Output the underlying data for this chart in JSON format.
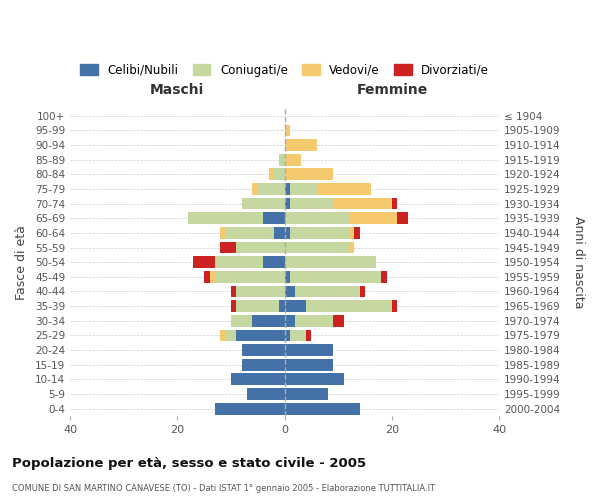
{
  "age_groups": [
    "0-4",
    "5-9",
    "10-14",
    "15-19",
    "20-24",
    "25-29",
    "30-34",
    "35-39",
    "40-44",
    "45-49",
    "50-54",
    "55-59",
    "60-64",
    "65-69",
    "70-74",
    "75-79",
    "80-84",
    "85-89",
    "90-94",
    "95-99",
    "100+"
  ],
  "birth_years": [
    "2000-2004",
    "1995-1999",
    "1990-1994",
    "1985-1989",
    "1980-1984",
    "1975-1979",
    "1970-1974",
    "1965-1969",
    "1960-1964",
    "1955-1959",
    "1950-1954",
    "1945-1949",
    "1940-1944",
    "1935-1939",
    "1930-1934",
    "1925-1929",
    "1920-1924",
    "1915-1919",
    "1910-1914",
    "1905-1909",
    "≤ 1904"
  ],
  "maschi": {
    "celibi": [
      13,
      7,
      10,
      8,
      8,
      9,
      6,
      1,
      0,
      0,
      4,
      0,
      2,
      4,
      0,
      0,
      0,
      0,
      0,
      0,
      0
    ],
    "coniugati": [
      0,
      0,
      0,
      0,
      0,
      2,
      4,
      8,
      9,
      13,
      9,
      9,
      9,
      14,
      8,
      5,
      2,
      1,
      0,
      0,
      0
    ],
    "vedovi": [
      0,
      0,
      0,
      0,
      0,
      1,
      0,
      0,
      0,
      1,
      0,
      0,
      1,
      0,
      0,
      1,
      1,
      0,
      0,
      0,
      0
    ],
    "divorziati": [
      0,
      0,
      0,
      0,
      0,
      0,
      0,
      1,
      1,
      1,
      4,
      3,
      0,
      0,
      0,
      0,
      0,
      0,
      0,
      0,
      0
    ]
  },
  "femmine": {
    "nubili": [
      14,
      8,
      11,
      9,
      9,
      1,
      2,
      4,
      2,
      1,
      0,
      0,
      1,
      0,
      1,
      1,
      0,
      0,
      0,
      0,
      0
    ],
    "coniugate": [
      0,
      0,
      0,
      0,
      0,
      3,
      7,
      16,
      12,
      17,
      17,
      12,
      11,
      12,
      8,
      5,
      0,
      0,
      0,
      0,
      0
    ],
    "vedove": [
      0,
      0,
      0,
      0,
      0,
      0,
      0,
      0,
      0,
      0,
      0,
      1,
      1,
      9,
      11,
      10,
      9,
      3,
      6,
      1,
      0
    ],
    "divorziate": [
      0,
      0,
      0,
      0,
      0,
      1,
      2,
      1,
      1,
      1,
      0,
      0,
      1,
      2,
      1,
      0,
      0,
      0,
      0,
      0,
      0
    ]
  },
  "colors": {
    "celibi": "#4472a8",
    "coniugati": "#c5d8a0",
    "vedovi": "#f5c96e",
    "divorziati": "#cc2222"
  },
  "xlim": 40,
  "title": "Popolazione per età, sesso e stato civile - 2005",
  "subtitle": "COMUNE DI SAN MARTINO CANAVESE (TO) - Dati ISTAT 1° gennaio 2005 - Elaborazione TUTTITALIA.IT",
  "ylabel_left": "Fasce di età",
  "ylabel_right": "Anni di nascita",
  "xlabel_left": "Maschi",
  "xlabel_right": "Femmine"
}
